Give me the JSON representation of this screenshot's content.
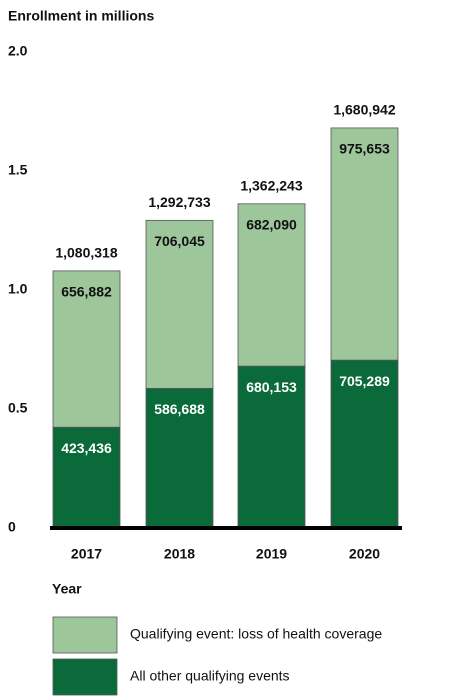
{
  "chart_data": {
    "type": "stacked_bar",
    "title": "Enrollment in millions",
    "x_label": "Year",
    "categories": [
      "2017",
      "2018",
      "2019",
      "2020"
    ],
    "series": [
      {
        "name": "Qualifying event: loss of health coverage",
        "color": "#9dc79b",
        "values": [
          0.656882,
          0.706045,
          0.68209,
          0.975653
        ],
        "value_labels": [
          "656,882",
          "706,045",
          "682,090",
          "975,653"
        ]
      },
      {
        "name": "All other qualifying events",
        "color": "#0b6a3a",
        "values": [
          0.423436,
          0.586688,
          0.680153,
          0.705289
        ],
        "value_labels": [
          "423,436",
          "586,688",
          "680,153",
          "705,289"
        ]
      }
    ],
    "totals": {
      "values": [
        1.080318,
        1.292733,
        1.362243,
        1.680942
      ],
      "value_labels": [
        "1,080,318",
        "1,292,733",
        "1,362,243",
        "1,680,942"
      ]
    },
    "ylim": [
      0,
      2.0
    ],
    "yticks": [
      0,
      0.5,
      {
        "value": 1.0,
        "label": "1.0"
      },
      1.5,
      {
        "value": 2.0,
        "label": "2.0"
      }
    ],
    "grid": false
  }
}
